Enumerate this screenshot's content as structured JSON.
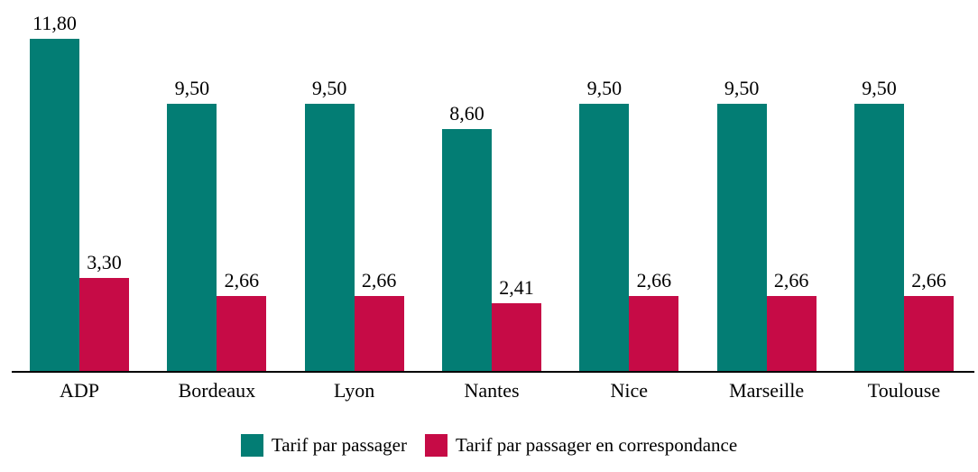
{
  "chart_data": {
    "type": "bar",
    "categories": [
      "ADP",
      "Bordeaux",
      "Lyon",
      "Nantes",
      "Nice",
      "Marseille",
      "Toulouse"
    ],
    "series": [
      {
        "name": "Tarif par passager",
        "color": "#037d74",
        "values": [
          11.8,
          9.5,
          9.5,
          8.6,
          9.5,
          9.5,
          9.5
        ],
        "labels": [
          "11,80",
          "9,50",
          "9,50",
          "8,60",
          "9,50",
          "9,50",
          "9,50"
        ]
      },
      {
        "name": "Tarif par passager en correspondance",
        "color": "#c60b46",
        "values": [
          3.3,
          2.66,
          2.66,
          2.41,
          2.66,
          2.66,
          2.66
        ],
        "labels": [
          "3,30",
          "2,66",
          "2,66",
          "2,41",
          "2,66",
          "2,66",
          "2,66"
        ]
      }
    ],
    "title": "",
    "xlabel": "",
    "ylabel": "",
    "ylim": [
      0,
      12.6
    ],
    "grid": false,
    "axis_line_color": "#000000",
    "legend_position": "bottom",
    "value_labels_shown": true,
    "decimal_separator": ","
  }
}
